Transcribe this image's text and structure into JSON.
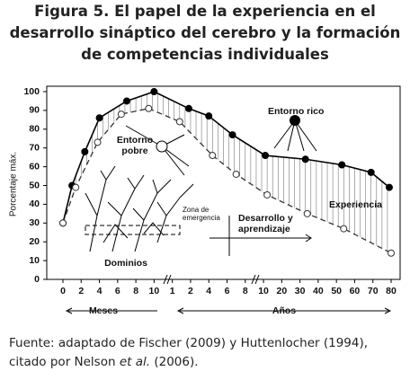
{
  "chart_data": {
    "type": "line",
    "title": "Figura 5. El papel de la experiencia en el desarrollo sináptico del cerebro y la formación de competencias individuales",
    "ylabel": "Porcentaje máx.",
    "ylim": [
      0,
      100
    ],
    "yticks": [
      0,
      10,
      20,
      30,
      40,
      50,
      60,
      70,
      80,
      90,
      100
    ],
    "xlim": [
      0,
      18
    ],
    "xticks": [
      {
        "value": 0,
        "label": "0"
      },
      {
        "value": 1,
        "label": "2"
      },
      {
        "value": 2,
        "label": "4"
      },
      {
        "value": 3,
        "label": "6"
      },
      {
        "value": 4,
        "label": "8"
      },
      {
        "value": 5,
        "label": "10"
      },
      {
        "value": 6,
        "label": "1"
      },
      {
        "value": 7,
        "label": "2"
      },
      {
        "value": 8,
        "label": "4"
      },
      {
        "value": 9,
        "label": "6"
      },
      {
        "value": 10,
        "label": "8"
      },
      {
        "value": 11,
        "label": "10"
      },
      {
        "value": 12,
        "label": "20"
      },
      {
        "value": 13,
        "label": "30"
      },
      {
        "value": 14,
        "label": "40"
      },
      {
        "value": 15,
        "label": "50"
      },
      {
        "value": 16,
        "label": "60"
      },
      {
        "value": 17,
        "label": "70"
      },
      {
        "value": 18,
        "label": "80"
      }
    ],
    "x_groups": [
      "Meses",
      "Años"
    ],
    "series": [
      {
        "name": "Entorno rico",
        "color": "#000000",
        "dashed": false,
        "x": [
          0,
          0.5,
          1.2,
          2,
          3.5,
          5,
          6.9,
          8,
          9.3,
          11.1,
          13.3,
          15.3,
          16.9,
          17.9
        ],
        "values": [
          30,
          50,
          68,
          86,
          95,
          100,
          91,
          87,
          77,
          66,
          64,
          61,
          57,
          49
        ]
      },
      {
        "name": "Entorno pobre",
        "color": "#333333",
        "dashed": true,
        "x": [
          0,
          0.7,
          1.9,
          3.2,
          4.7,
          6.4,
          8.2,
          9.5,
          11.2,
          13.4,
          15.4,
          18
        ],
        "values": [
          30,
          49,
          73,
          88,
          91,
          84,
          66,
          56,
          45,
          35,
          27,
          14
        ]
      }
    ],
    "annotations": {
      "pobre": [
        "Entorno",
        "pobre"
      ],
      "zona": [
        "Zona de",
        "emergencia"
      ],
      "desarrollo": [
        "Desarrollo y",
        "aprendizaje"
      ],
      "experiencia": "Experiencia",
      "dominios": "Dominios"
    },
    "source": [
      "Fuente: adaptado de Fischer (2009) y Huttenlocher (1994), citado por Nelson ",
      "et al.",
      " (2006)."
    ]
  }
}
